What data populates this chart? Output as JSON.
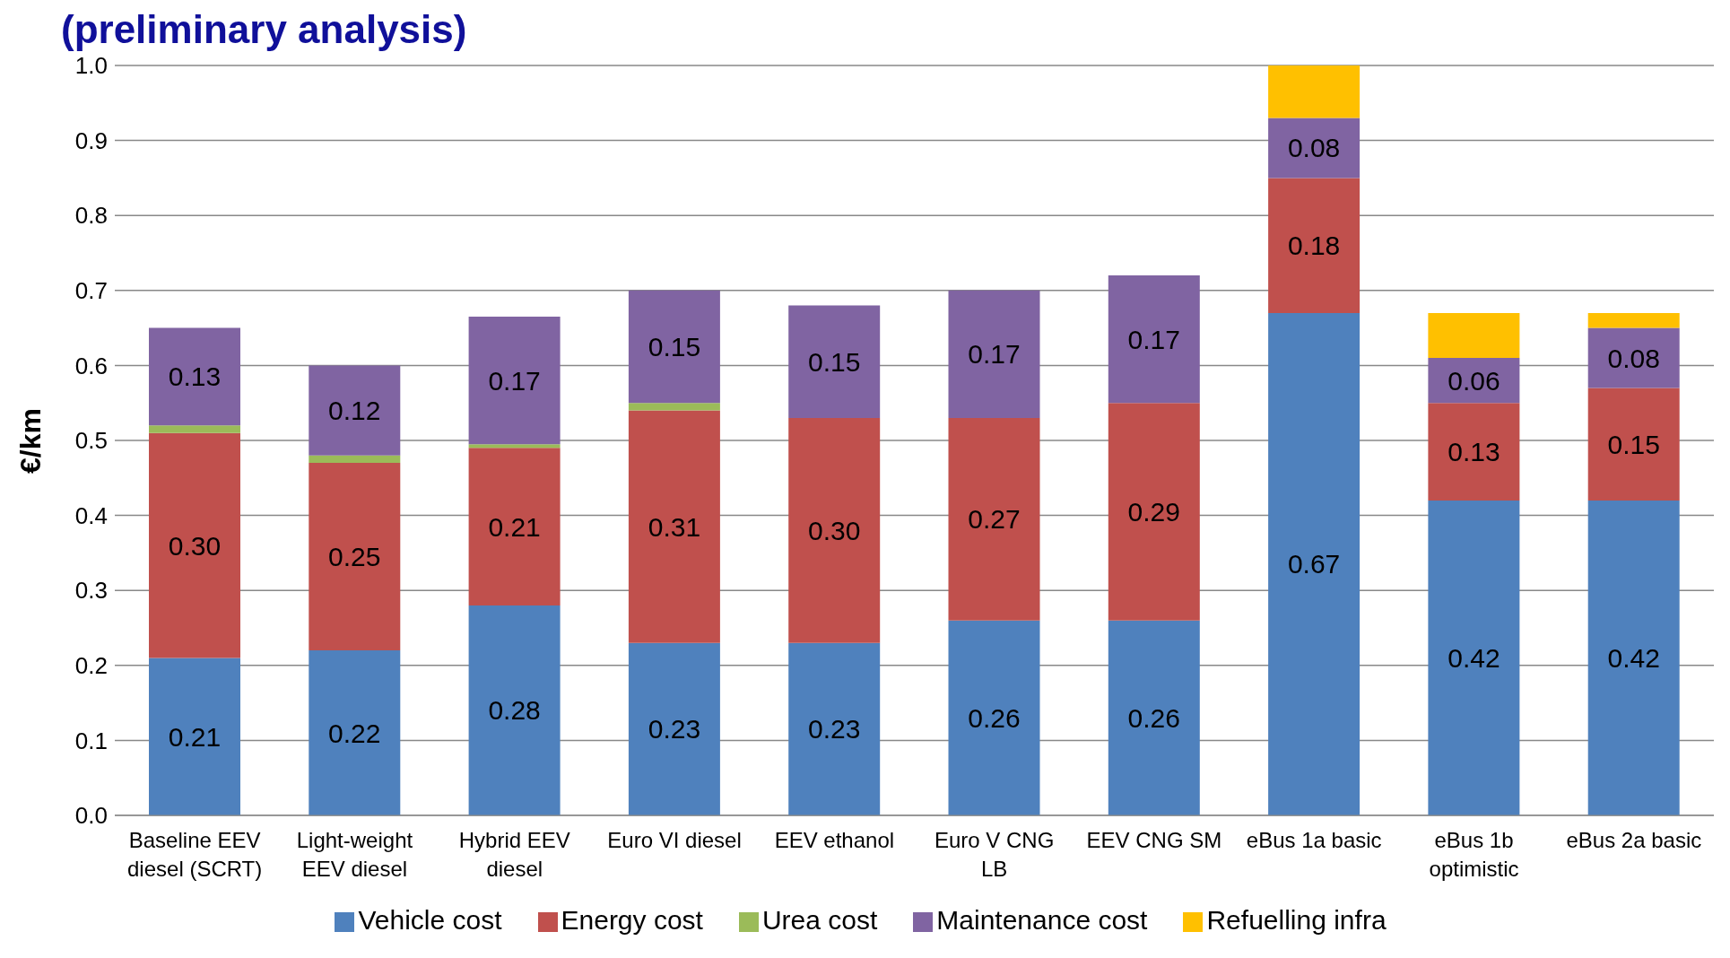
{
  "chart_data": {
    "type": "bar",
    "title": "(preliminary analysis)",
    "ylabel": "€/km",
    "stacked": true,
    "categories": [
      "Baseline EEV\ndiesel (SCRT)",
      "Light-weight\nEEV diesel",
      "Hybrid EEV\ndiesel",
      "Euro VI diesel",
      "EEV ethanol",
      "Euro V CNG\nLB",
      "EEV CNG SM",
      "eBus 1a basic",
      "eBus 1b\noptimistic",
      "eBus 2a basic"
    ],
    "series": [
      {
        "name": "Vehicle cost",
        "color": "#4f81bd",
        "values": [
          0.21,
          0.22,
          0.28,
          0.23,
          0.23,
          0.26,
          0.26,
          0.67,
          0.42,
          0.42
        ],
        "value_labels": [
          "0.21",
          "0.22",
          "0.28",
          "0.23",
          "0.23",
          "0.26",
          "0.26",
          "0.67",
          "0.42",
          "0.42"
        ]
      },
      {
        "name": "Energy cost",
        "color": "#c0504d",
        "values": [
          0.3,
          0.25,
          0.21,
          0.31,
          0.3,
          0.27,
          0.29,
          0.18,
          0.13,
          0.15
        ],
        "value_labels": [
          "0.30",
          "0.25",
          "0.21",
          "0.31",
          "0.30",
          "0.27",
          "0.29",
          "0.18",
          "0.13",
          "0.15"
        ]
      },
      {
        "name": "Urea cost",
        "color": "#9bbb59",
        "values": [
          0.01,
          0.01,
          0.005,
          0.01,
          null,
          null,
          null,
          null,
          null,
          null
        ]
      },
      {
        "name": "Maintenance cost",
        "color": "#8064a2",
        "values": [
          0.13,
          0.12,
          0.17,
          0.15,
          0.15,
          0.17,
          0.17,
          0.08,
          0.06,
          0.08
        ],
        "value_labels": [
          "0.13",
          "0.12",
          "0.17",
          "0.15",
          "0.15",
          "0.17",
          "0.17",
          "0.08",
          "0.06",
          "0.08"
        ]
      },
      {
        "name": "Refuelling infra",
        "color": "#ffc000",
        "values": [
          null,
          null,
          null,
          null,
          null,
          null,
          null,
          0.07,
          0.06,
          0.02
        ]
      }
    ],
    "ylim": [
      0,
      1
    ],
    "yticks": [
      {
        "value": 0,
        "label": "0.0"
      },
      0.1,
      0.2,
      0.3,
      0.4,
      0.5,
      0.6,
      0.7,
      0.8,
      0.9,
      {
        "value": 1,
        "label": "1.0"
      }
    ],
    "grid": "y",
    "legend": "bottom"
  }
}
